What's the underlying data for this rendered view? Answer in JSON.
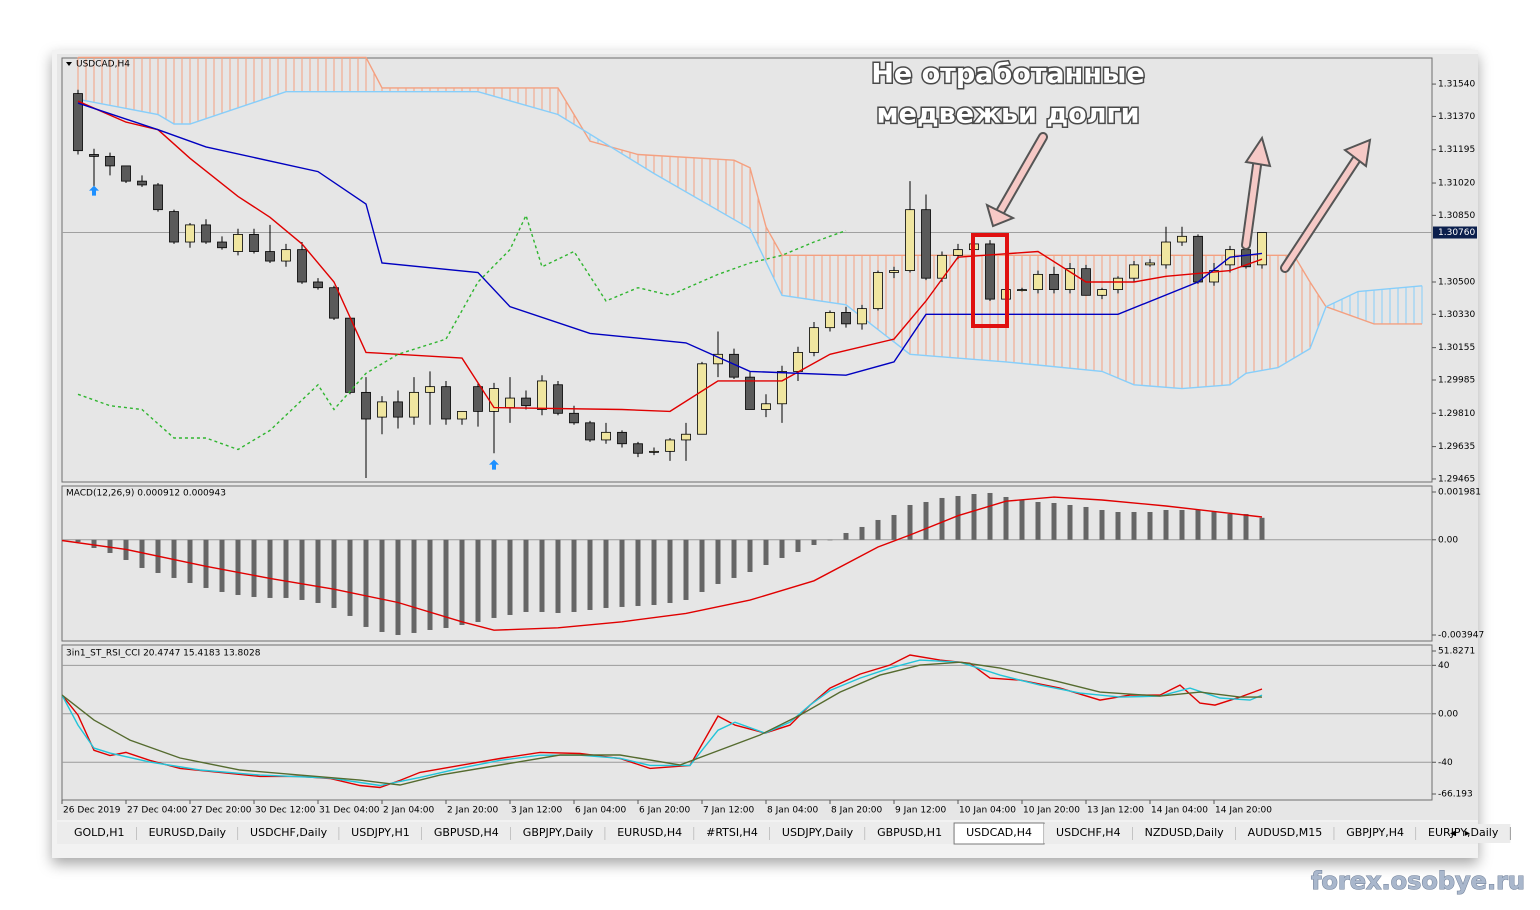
{
  "window": {
    "tabs": [
      "GOLD,H1",
      "EURUSD,Daily",
      "USDCHF,Daily",
      "USDJPY,H1",
      "GBPUSD,H4",
      "GBPJPY,Daily",
      "EURUSD,H4",
      "#RTSI,H4",
      "USDJPY,Daily",
      "GBPUSD,H1",
      "USDCAD,H4",
      "USDCHF,H4",
      "NZDUSD,Daily",
      "AUDUSD,M15",
      "GBPJPY,H4",
      "EURJPY,Daily"
    ],
    "active_tab": 10,
    "time_axis": [
      "26 Dec 2019",
      "27 Dec 04:00",
      "27 Dec 20:00",
      "30 Dec 12:00",
      "31 Dec 04:00",
      "2 Jan 04:00",
      "2 Jan 20:00",
      "3 Jan 12:00",
      "6 Jan 04:00",
      "6 Jan 20:00",
      "7 Jan 12:00",
      "8 Jan 04:00",
      "8 Jan 20:00",
      "9 Jan 12:00",
      "10 Jan 04:00",
      "10 Jan 20:00",
      "13 Jan 12:00",
      "14 Jan 04:00",
      "14 Jan 20:00"
    ],
    "annotation": [
      "Не отработанные",
      "медвежьи долги"
    ],
    "watermark": "forex.osobye.ru"
  },
  "chart_data": [
    {
      "type": "candlestick",
      "title": "USDCAD,H4",
      "ylim": [
        1.29449,
        1.31677
      ],
      "yticks": [
        {
          "value": 1.3154,
          "label": "1.31540"
        },
        {
          "value": 1.3137,
          "label": "1.31370"
        },
        1.31195,
        {
          "value": 1.3102,
          "label": "1.31020"
        },
        {
          "value": 1.3085,
          "label": "1.30850"
        },
        {
          "value": 1.305,
          "label": "1.30500"
        },
        {
          "value": 1.3033,
          "label": "1.30330"
        },
        1.30155,
        1.29985,
        {
          "value": 1.2981,
          "label": "1.29810"
        },
        1.29635,
        1.29465
      ],
      "last_price": {
        "value": 1.3076,
        "label": "1.30760"
      },
      "bull_color": "#f0e6a0",
      "bear_color": "#5a5a5a",
      "open": [
        1.3149,
        1.3117,
        1.3116,
        1.3111,
        1.3103,
        1.3101,
        1.3087,
        1.3071,
        1.308,
        1.3071,
        1.3066,
        1.3075,
        1.3066,
        1.3061,
        1.3067,
        1.305,
        1.3047,
        1.3031,
        1.2992,
        1.2979,
        1.2987,
        1.2979,
        1.2992,
        1.2995,
        1.2978,
        1.2995,
        1.2982,
        1.2984,
        1.2989,
        1.2983,
        1.2996,
        1.2981,
        1.2976,
        1.2967,
        1.2971,
        1.2965,
        1.2961,
        1.2961,
        1.2967,
        1.297,
        1.3007,
        1.3012,
        1.3,
        1.2983,
        1.2986,
        1.3003,
        1.3013,
        1.3026,
        1.3034,
        1.3028,
        1.3036,
        1.3055,
        1.3056,
        1.3088,
        1.3052,
        1.3064,
        1.3067,
        1.307,
        1.3041,
        1.3046,
        1.3046,
        1.3054,
        1.3046,
        1.3057,
        1.3043,
        1.3046,
        1.3052,
        1.3059,
        1.3059,
        1.3071,
        1.3074,
        1.305,
        1.3059,
        1.3067,
        1.3059
      ],
      "high": [
        1.3151,
        1.312,
        1.3118,
        1.3111,
        1.3106,
        1.3102,
        1.3088,
        1.3081,
        1.3083,
        1.3074,
        1.3078,
        1.3078,
        1.308,
        1.307,
        1.3071,
        1.3052,
        1.3048,
        1.3031,
        1.3,
        1.299,
        1.2993,
        1.3,
        1.3003,
        1.2998,
        1.2982,
        1.2997,
        1.2997,
        1.3,
        1.2993,
        1.3001,
        1.2998,
        1.2985,
        1.2977,
        1.2976,
        1.2972,
        1.2966,
        1.2963,
        1.2968,
        1.2976,
        1.3008,
        1.3024,
        1.3015,
        1.3003,
        1.2991,
        1.3006,
        1.3016,
        1.3029,
        1.3035,
        1.3037,
        1.3038,
        1.3056,
        1.3058,
        1.3103,
        1.3096,
        1.3066,
        1.307,
        1.3075,
        1.3072,
        1.3048,
        1.3047,
        1.3056,
        1.3058,
        1.306,
        1.3059,
        1.3047,
        1.3053,
        1.3061,
        1.3062,
        1.3079,
        1.3079,
        1.3075,
        1.306,
        1.3069,
        1.3072,
        1.3076
      ],
      "low": [
        1.3117,
        1.3099,
        1.3106,
        1.3102,
        1.31,
        1.3087,
        1.307,
        1.3068,
        1.307,
        1.3067,
        1.3064,
        1.3065,
        1.306,
        1.3058,
        1.3049,
        1.3046,
        1.303,
        1.2991,
        1.2947,
        1.297,
        1.2973,
        1.2975,
        1.2975,
        1.2975,
        1.2975,
        1.2974,
        1.296,
        1.2976,
        1.2983,
        1.298,
        1.298,
        1.2975,
        1.2966,
        1.2965,
        1.2963,
        1.2958,
        1.2959,
        1.2956,
        1.2956,
        1.297,
        1.3,
        1.2999,
        1.2983,
        1.2979,
        1.2976,
        1.2998,
        1.3011,
        1.3024,
        1.3026,
        1.3025,
        1.3035,
        1.3052,
        1.3055,
        1.3051,
        1.305,
        1.3062,
        1.3063,
        1.304,
        1.304,
        1.3045,
        1.3044,
        1.3044,
        1.3044,
        1.3043,
        1.3041,
        1.3044,
        1.305,
        1.3058,
        1.3057,
        1.3069,
        1.3049,
        1.3048,
        1.3055,
        1.3057,
        1.3057
      ],
      "close": [
        1.3119,
        1.3116,
        1.3111,
        1.3103,
        1.3101,
        1.3088,
        1.3071,
        1.308,
        1.3071,
        1.3068,
        1.3075,
        1.3066,
        1.3061,
        1.3067,
        1.305,
        1.3047,
        1.3031,
        1.2992,
        1.2978,
        1.2987,
        1.2979,
        1.2992,
        1.2995,
        1.2978,
        1.2982,
        1.2982,
        1.2994,
        1.2989,
        1.2985,
        1.2998,
        1.2981,
        1.2976,
        1.2967,
        1.2971,
        1.2965,
        1.296,
        1.2961,
        1.2967,
        1.297,
        1.3007,
        1.3012,
        1.3,
        1.2983,
        1.2986,
        1.3003,
        1.3013,
        1.3026,
        1.3034,
        1.3028,
        1.3036,
        1.3055,
        1.3056,
        1.3088,
        1.3052,
        1.3064,
        1.3067,
        1.307,
        1.3041,
        1.3046,
        1.3046,
        1.3054,
        1.3046,
        1.3057,
        1.3043,
        1.3046,
        1.3052,
        1.3059,
        1.306,
        1.3071,
        1.3074,
        1.305,
        1.3056,
        1.3067,
        1.3058,
        1.3076
      ],
      "cloud": true,
      "series": [
        {
          "color": "#e00000",
          "style": "solid",
          "x": [
            0,
            3,
            5,
            7,
            10,
            12,
            14,
            16,
            18,
            24,
            26,
            34,
            37,
            40,
            44,
            47,
            51,
            53,
            55,
            60,
            63,
            66,
            68,
            72,
            74
          ],
          "values": [
            1.3145,
            1.3134,
            1.313,
            1.3115,
            1.3095,
            1.3084,
            1.307,
            1.305,
            1.3013,
            1.301,
            1.2984,
            1.2983,
            1.2982,
            1.2998,
            1.2998,
            1.3012,
            1.302,
            1.304,
            1.3063,
            1.3066,
            1.305,
            1.305,
            1.3053,
            1.3056,
            1.3062
          ]
        },
        {
          "color": "#0000c0",
          "style": "solid",
          "x": [
            0,
            5,
            8,
            15,
            18,
            19,
            25,
            27,
            32,
            38,
            42,
            48,
            51,
            53,
            65,
            70,
            72,
            74
          ],
          "values": [
            1.3144,
            1.313,
            1.3121,
            1.3108,
            1.3091,
            1.306,
            1.3055,
            1.3037,
            1.3023,
            1.3018,
            1.3003,
            1.3001,
            1.3008,
            1.3033,
            1.3033,
            1.305,
            1.3063,
            1.3065
          ]
        },
        {
          "color": "#2fb52f",
          "style": "dashed",
          "x": [
            0,
            2,
            4,
            6,
            8,
            10,
            12,
            15,
            16,
            18,
            20,
            23,
            25,
            27,
            28,
            29,
            31,
            33,
            35,
            37,
            40,
            42,
            44,
            46,
            48
          ],
          "values": [
            1.2991,
            1.2985,
            1.2983,
            1.2968,
            1.2968,
            1.2962,
            1.2972,
            1.2996,
            1.2983,
            1.3002,
            1.3012,
            1.302,
            1.305,
            1.3067,
            1.3085,
            1.3058,
            1.3066,
            1.304,
            1.3047,
            1.3043,
            1.3054,
            1.306,
            1.3064,
            1.3071,
            1.3077
          ]
        },
        {
          "color": "#f4a080",
          "style": "solid",
          "x": [
            0,
            18,
            19,
            26,
            30,
            31,
            32,
            35,
            41,
            42,
            43,
            44,
            76,
            77,
            78,
            81,
            84
          ],
          "values": [
            1.3168,
            1.3168,
            1.3152,
            1.3152,
            1.3152,
            1.3138,
            1.3124,
            1.3117,
            1.3114,
            1.311,
            1.3079,
            1.3064,
            1.3064,
            1.305,
            1.3037,
            1.3028,
            1.3028
          ]
        },
        {
          "color": "#87cefa",
          "style": "solid",
          "x": [
            0,
            5,
            6,
            7,
            13,
            18,
            25,
            30,
            36,
            42,
            44,
            48,
            52,
            58,
            64,
            66,
            69,
            72,
            73,
            75,
            77,
            78,
            80,
            84
          ],
          "values": [
            1.3146,
            1.3138,
            1.3133,
            1.3133,
            1.315,
            1.315,
            1.315,
            1.3138,
            1.3107,
            1.3078,
            1.3043,
            1.3038,
            1.3012,
            1.3008,
            1.3003,
            1.2996,
            1.2994,
            1.2996,
            1.3002,
            1.3005,
            1.3015,
            1.3037,
            1.3045,
            1.3048
          ]
        }
      ],
      "markers": {
        "color": "#1e90ff",
        "x": [
          1,
          26
        ],
        "values": [
          1.3098,
          1.2954
        ]
      }
    },
    {
      "type": "bar",
      "title": "MACD(12,26,9) 0.000912 0.000943",
      "ylim": [
        -0.003947,
        0.001981
      ],
      "yticks": [
        0.001981,
        {
          "value": 0,
          "label": "0.00"
        },
        -0.003947
      ],
      "color": "#666666",
      "values": [
        -9.1e-05,
        -0.00034,
        -0.000547,
        -0.000837,
        -0.001169,
        -0.001376,
        -0.001583,
        -0.001791,
        -0.001998,
        -0.002164,
        -0.002288,
        -0.002371,
        -0.002412,
        -0.002412,
        -0.002495,
        -0.00262,
        -0.002827,
        -0.003158,
        -0.003614,
        -0.003822,
        -0.003946,
        -0.003863,
        -0.003739,
        -0.003656,
        -0.003532,
        -0.003407,
        -0.003241,
        -0.003117,
        -0.002993,
        -0.002993,
        -0.003034,
        -0.002993,
        -0.00291,
        -0.002827,
        -0.002785,
        -0.002744,
        -0.002703,
        -0.00262,
        -0.002495,
        -0.002164,
        -0.001832,
        -0.001583,
        -0.001335,
        -0.001045,
        -0.000754,
        -0.000506,
        -0.000216,
        -8e-06,
        0.000282,
        0.000531,
        0.000821,
        0.001028,
        0.001442,
        0.001567,
        0.001733,
        0.001816,
        0.001898,
        0.00194,
        0.001774,
        0.00165,
        0.001567,
        0.001525,
        0.001442,
        0.00136,
        0.001235,
        0.001152,
        0.001152,
        0.001152,
        0.001235,
        0.001235,
        0.001235,
        0.001152,
        0.001069,
        0.001069,
        0.000912
      ],
      "series": [
        {
          "color": "#e00000",
          "style": "solid",
          "x": [
            -1,
            3,
            8,
            12,
            16,
            20,
            24,
            26,
            30,
            34,
            38,
            42,
            46,
            50,
            52,
            55,
            58,
            61,
            64,
            68,
            72,
            74
          ],
          "values": [
            -3e-05,
            -0.0004,
            -0.0011,
            -0.0016,
            -0.00205,
            -0.0026,
            -0.0034,
            -0.00375,
            -0.00365,
            -0.0034,
            -0.00305,
            -0.0025,
            -0.0017,
            -0.0003,
            0.0002,
            0.001,
            0.0016,
            0.00177,
            0.00165,
            0.0014,
            0.0011,
            0.000943
          ]
        }
      ]
    },
    {
      "type": "line",
      "title": "3in1_ST_RSI_CCI 20.4747 15.4183 13.8028",
      "ylim": [
        -66.193,
        51.8271
      ],
      "yticks": [
        51.8271,
        40,
        {
          "value": 0,
          "label": "0.00"
        },
        -40,
        -66.193
      ],
      "grid": true,
      "series": [
        {
          "color": "#e00000",
          "style": "solid",
          "x": [
            -1,
            0,
            1,
            2,
            3,
            4.5,
            6.375,
            8.875,
            11.375,
            13.875,
            15.75,
            17.625,
            18.875,
            20.125,
            21.375,
            23.875,
            26.375,
            28.875,
            31.375,
            33.875,
            35.75,
            38.25,
            40,
            41.0625,
            42.9375,
            44.5,
            45.75,
            47,
            48.875,
            50.75,
            52,
            53.875,
            55.75,
            57,
            58.875,
            61.375,
            63.875,
            65.75,
            67.625,
            68.875,
            70.125,
            71.0625,
            72.625,
            74
          ],
          "values": [
            15.4,
            -1.1,
            -30.1,
            -34.4,
            -31.9,
            -38.5,
            -45.1,
            -48.4,
            -51.7,
            -51.7,
            -53.4,
            -59.2,
            -60.8,
            -55.0,
            -48.4,
            -42.6,
            -36.9,
            -31.9,
            -32.8,
            -36.9,
            -45.1,
            -42.6,
            -1.9,
            -9.3,
            -15.9,
            -9.3,
            7.2,
            21.2,
            32.8,
            40.3,
            48.5,
            44.3,
            41.7,
            29.5,
            27.8,
            21.2,
            11.3,
            15.4,
            15.4,
            23.7,
            8.8,
            7.2,
            13.8,
            20.4747
          ]
        },
        {
          "color": "#22c4d8",
          "style": "solid",
          "x": [
            -1,
            0,
            1,
            2,
            4.5,
            7.625,
            11.375,
            15.75,
            18.875,
            21.375,
            23.875,
            26.375,
            28.875,
            31.375,
            33.875,
            35.75,
            38.25,
            40,
            41.0625,
            42.9375,
            44.5,
            45.75,
            47,
            48.875,
            50.75,
            52.625,
            55.125,
            57.625,
            60.125,
            62.625,
            65.125,
            67.625,
            69.5,
            71.375,
            73.25,
            74
          ],
          "values": [
            15.4,
            -9.3,
            -28.3,
            -32.4,
            -39.8,
            -46.4,
            -50.6,
            -53.0,
            -59.2,
            -52.5,
            -45.0,
            -38.4,
            -34.2,
            -34.2,
            -36.7,
            -42.6,
            -42.6,
            -13.5,
            -6.9,
            -15.9,
            -6.9,
            7.2,
            19.2,
            29.5,
            37.7,
            44.3,
            42.6,
            31.9,
            23.7,
            17.1,
            13.8,
            14.6,
            21.2,
            13.0,
            11.3,
            15.4183
          ]
        },
        {
          "color": "#556b2f",
          "style": "solid",
          "x": [
            -1,
            1,
            3.25,
            6.375,
            10.125,
            13.875,
            17.625,
            20.125,
            22.625,
            26.375,
            30.125,
            33.875,
            37.625,
            40.125,
            42.625,
            45.125,
            47.625,
            50.125,
            52.625,
            55.125,
            57.625,
            61.375,
            63.875,
            67.625,
            70.125,
            72.625,
            74
          ],
          "values": [
            15.4,
            -5.2,
            -21.7,
            -36.5,
            -46.4,
            -50.6,
            -54.7,
            -58.8,
            -50.6,
            -42.3,
            -34.0,
            -34.0,
            -42.3,
            -29.9,
            -17.5,
            -1.1,
            17.9,
            31.9,
            40.2,
            42.6,
            37.7,
            26.2,
            17.9,
            14.6,
            17.9,
            13.8,
            13.8028
          ]
        }
      ]
    }
  ]
}
